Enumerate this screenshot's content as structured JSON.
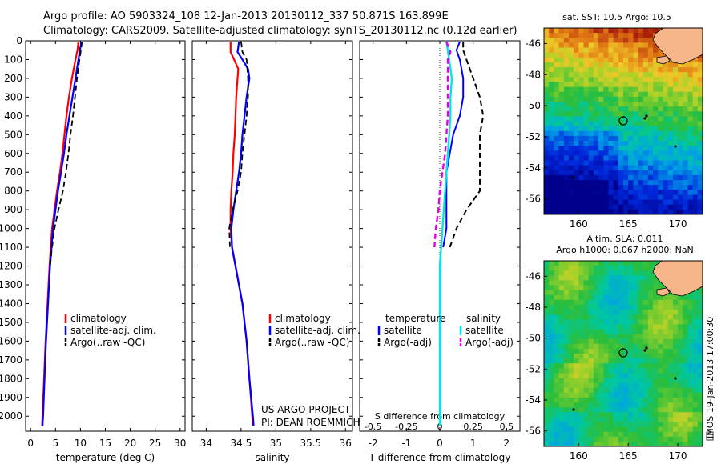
{
  "header": {
    "line1": "Argo profile: AO 5903324_108 12-Jan-2013 20130112_337 50.871S 163.899E",
    "line2": "Climatology: CARS2009. Satellite-adjusted climatology: synTS_20130112.nc (0.12d earlier)"
  },
  "colors": {
    "climatology": "#ff0000",
    "satellite": "#0000ff",
    "argo": "#000000",
    "sat_salinity": "#00e5e5",
    "argo_salinity_adj": "#e600e6",
    "land": "#f7b58a"
  },
  "depth_axis": {
    "ylim": [
      0,
      2080
    ],
    "ticks": [
      0,
      100,
      200,
      300,
      400,
      500,
      600,
      700,
      800,
      900,
      1000,
      1100,
      1200,
      1300,
      1400,
      1500,
      1600,
      1700,
      1800,
      1900,
      2000
    ]
  },
  "chart_data": [
    {
      "type": "line",
      "panel": "temperature",
      "xlabel": "temperature (deg C)",
      "xlim": [
        -1,
        31
      ],
      "xticks": [
        0,
        5,
        10,
        15,
        20,
        25,
        30
      ],
      "legend": [
        "climatology",
        "satellite-adj. clim.",
        "Argo(..raw -QC)"
      ],
      "series": [
        {
          "name": "climatology",
          "depth": [
            5,
            50,
            100,
            200,
            300,
            400,
            500,
            600,
            700,
            800,
            900,
            1000,
            1200,
            1400,
            1600,
            1800,
            2000,
            2050
          ],
          "values": [
            9.6,
            9.4,
            9.0,
            8.3,
            7.7,
            7.2,
            6.8,
            6.4,
            5.9,
            5.3,
            4.8,
            4.3,
            3.8,
            3.4,
            3.0,
            2.7,
            2.4,
            2.3
          ]
        },
        {
          "name": "satellite-adj. clim.",
          "depth": [
            5,
            50,
            100,
            200,
            300,
            400,
            500,
            600,
            700,
            800,
            900,
            1000,
            1200,
            1400,
            1600,
            1800,
            2000,
            2050
          ],
          "values": [
            10.2,
            9.9,
            9.6,
            9.0,
            8.4,
            7.8,
            7.2,
            6.7,
            6.1,
            5.5,
            5.0,
            4.5,
            3.9,
            3.5,
            3.1,
            2.8,
            2.5,
            2.4
          ]
        },
        {
          "name": "Argo(..raw -QC)",
          "depth": [
            5,
            50,
            100,
            200,
            300,
            400,
            500,
            600,
            700,
            800,
            900,
            1000,
            1100,
            1200
          ],
          "values": [
            10.3,
            10.1,
            9.8,
            9.3,
            8.9,
            8.5,
            8.0,
            7.6,
            7.1,
            6.5,
            5.6,
            4.8,
            4.3,
            3.9
          ]
        }
      ]
    },
    {
      "type": "line",
      "panel": "salinity",
      "xlabel": "salinity",
      "xlim": [
        33.8,
        36.1
      ],
      "xticks": [
        34,
        34.5,
        35,
        35.5,
        36
      ],
      "legend": [
        "climatology",
        "satellite-adj. clim.",
        "Argo(..raw -QC)"
      ],
      "series": [
        {
          "name": "climatology",
          "depth": [
            5,
            60,
            100,
            150,
            200,
            300,
            400,
            500,
            600,
            700,
            800,
            900,
            1000,
            1100,
            1200,
            1400,
            1600,
            1800,
            2000,
            2050
          ],
          "values": [
            34.35,
            34.35,
            34.4,
            34.46,
            34.45,
            34.43,
            34.42,
            34.41,
            34.39,
            34.38,
            34.36,
            34.35,
            34.35,
            34.37,
            34.42,
            34.52,
            34.58,
            34.62,
            34.66,
            34.67
          ]
        },
        {
          "name": "satellite-adj. clim.",
          "depth": [
            5,
            60,
            100,
            150,
            200,
            300,
            400,
            500,
            600,
            700,
            800,
            900,
            1000,
            1100,
            1200,
            1400,
            1600,
            1800,
            2000,
            2050
          ],
          "values": [
            34.47,
            34.45,
            34.52,
            34.6,
            34.62,
            34.58,
            34.55,
            34.52,
            34.5,
            34.47,
            34.43,
            34.39,
            34.36,
            34.37,
            34.42,
            34.52,
            34.58,
            34.62,
            34.67,
            34.68
          ]
        },
        {
          "name": "Argo(..raw -QC)",
          "depth": [
            5,
            60,
            100,
            200,
            300,
            400,
            500,
            600,
            700,
            800,
            900,
            1000,
            1100
          ],
          "values": [
            34.5,
            34.52,
            34.58,
            34.6,
            34.6,
            34.58,
            34.55,
            34.52,
            34.5,
            34.45,
            34.38,
            34.33,
            34.34
          ]
        }
      ]
    },
    {
      "type": "line",
      "panel": "difference",
      "xlabel": "T difference from climatology",
      "xlabel_top": "S difference from climatology",
      "xlim": [
        -2.4,
        2.4
      ],
      "xticks": [
        -2,
        -1,
        0,
        1,
        2
      ],
      "xticks_salinity": [
        "-0.5",
        "-0.25",
        "0",
        "0.25",
        "0.5"
      ],
      "legend_temperature_title": "temperature",
      "legend_salinity_title": "salinity",
      "legend": [
        "satellite",
        "Argo(-adj)",
        "satellite",
        "Argo(-adj)"
      ],
      "series": [
        {
          "name": "satellite",
          "depth": [
            5,
            50,
            100,
            200,
            300,
            400,
            500,
            600,
            700,
            800,
            900,
            1000,
            1100
          ],
          "values": [
            0.6,
            0.5,
            0.6,
            0.7,
            0.7,
            0.6,
            0.4,
            0.3,
            0.2,
            0.2,
            0.2,
            0.2,
            0.1
          ]
        },
        {
          "name": "Argo(-adj)",
          "depth": [
            5,
            50,
            100,
            200,
            300,
            400,
            500,
            600,
            700,
            800,
            900,
            1000,
            1100
          ],
          "values": [
            0.7,
            0.7,
            0.8,
            1.0,
            1.2,
            1.3,
            1.2,
            1.2,
            1.2,
            1.2,
            0.8,
            0.5,
            0.3
          ]
        },
        {
          "name": "satellite",
          "depth": [
            5,
            100,
            200,
            300,
            400,
            500,
            600,
            700,
            800,
            900,
            1000,
            1100,
            1200,
            1400,
            1600,
            1800,
            2000,
            2050
          ],
          "values": [
            0.05,
            0.07,
            0.09,
            0.08,
            0.08,
            0.07,
            0.06,
            0.05,
            0.04,
            0.03,
            0.02,
            0.01,
            0.0,
            0.0,
            0.0,
            0.0,
            0.0,
            0.0
          ]
        },
        {
          "name": "Argo(-adj)",
          "depth": [
            5,
            60,
            100,
            200,
            300,
            400,
            500,
            600,
            700,
            800,
            900,
            1000,
            1100
          ],
          "values": [
            0.05,
            0.08,
            0.06,
            0.06,
            0.06,
            0.06,
            0.05,
            0.04,
            0.02,
            0.0,
            -0.01,
            -0.03,
            -0.04
          ]
        }
      ]
    }
  ],
  "credit": {
    "line1": "US ARGO PROJECT",
    "line2": "PI: DEAN ROEMMICH"
  },
  "maps": {
    "sst_title": "sat. SST: 10.5 Argo: 10.5",
    "sla_title1": "Altim. SLA: 0.011",
    "sla_title2": "Argo h1000: 0.067 h2000: NaN",
    "xticks": [
      "160",
      "165",
      "170"
    ],
    "yticks": [
      "-46",
      "-48",
      "-50",
      "-52",
      "-54",
      "-56"
    ],
    "argo_position": {
      "lon": 163.899,
      "lat": -50.871
    }
  },
  "footer": {
    "stamp": "IMOS 19-Jan-2013 17:00:30"
  }
}
